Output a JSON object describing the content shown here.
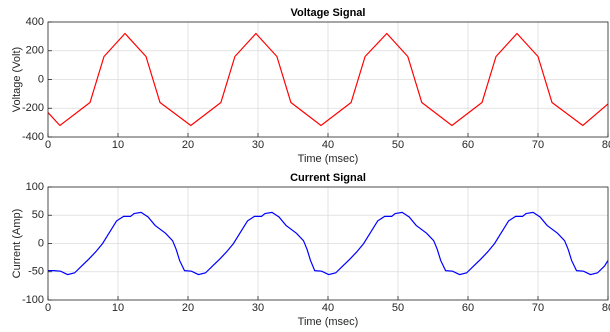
{
  "chart_data": [
    {
      "type": "line",
      "title": "Voltage Signal",
      "x_label": "Time (msec)",
      "y_label": "Voltage (Volt)",
      "color": "#ff0000",
      "grid": true,
      "xlim": [
        0,
        80
      ],
      "xticks": [
        0,
        10,
        20,
        30,
        40,
        50,
        60,
        70,
        80
      ],
      "ylim": [
        -400,
        400
      ],
      "yticks": [
        -400,
        -200,
        0,
        200,
        400
      ],
      "x": [
        0,
        1.7,
        6.0,
        8.0,
        11.0,
        14.0,
        16.0,
        20.4,
        24.7,
        26.7,
        29.7,
        32.7,
        34.7,
        39.0,
        43.3,
        45.3,
        48.4,
        51.4,
        53.4,
        57.7,
        62.0,
        64.0,
        67.0,
        70.0,
        72.0,
        76.4,
        80
      ],
      "values": [
        -230,
        -320,
        -160,
        160,
        320,
        160,
        -160,
        -320,
        -160,
        160,
        320,
        160,
        -160,
        -320,
        -160,
        160,
        320,
        160,
        -160,
        -320,
        -160,
        160,
        320,
        160,
        -160,
        -320,
        -170
      ]
    },
    {
      "type": "line",
      "title": "Current Signal",
      "x_label": "Time (msec)",
      "y_label": "Current (Amp)",
      "color": "#0000ff",
      "grid": true,
      "xlim": [
        0,
        80
      ],
      "xticks": [
        0,
        10,
        20,
        30,
        40,
        50,
        60,
        70,
        80
      ],
      "ylim": [
        -100,
        100
      ],
      "yticks": [
        -100,
        -50,
        0,
        50,
        100
      ],
      "x": [
        0,
        0.8,
        1.8,
        2.8,
        3.8,
        4.8,
        5.8,
        6.8,
        7.8,
        8.8,
        9.8,
        10.8,
        11.8,
        12.3,
        13.3,
        14.3,
        15.3,
        16.8,
        17.8,
        18.3,
        18.8,
        19.5,
        20.5,
        21.5,
        22.5,
        23.5,
        24.5,
        25.5,
        26.5,
        27.5,
        28.5,
        29.5,
        30.5,
        31,
        32,
        33,
        34,
        35.5,
        36.5,
        37,
        37.5,
        38.1,
        39.1,
        40.1,
        41.1,
        42.1,
        43.1,
        44.1,
        45.1,
        46.1,
        47.1,
        48.1,
        49.1,
        49.6,
        50.6,
        51.6,
        52.6,
        54.1,
        55.1,
        55.6,
        56.1,
        56.8,
        57.8,
        58.8,
        59.8,
        60.8,
        61.8,
        62.8,
        63.8,
        64.8,
        65.8,
        66.8,
        67.8,
        68.3,
        69.3,
        70.3,
        71.3,
        72.8,
        73.8,
        74.3,
        74.8,
        75.5,
        76.5,
        77.5,
        78.5,
        79.5,
        80
      ],
      "values": [
        -48,
        -48,
        -49,
        -55,
        -52,
        -40,
        -28,
        -15,
        0,
        20,
        40,
        48,
        48,
        53,
        55,
        47,
        32,
        18,
        5,
        -10,
        -30,
        -48,
        -49,
        -55,
        -52,
        -40,
        -28,
        -15,
        0,
        20,
        40,
        48,
        48,
        53,
        55,
        47,
        32,
        18,
        5,
        -10,
        -30,
        -48,
        -49,
        -55,
        -52,
        -40,
        -28,
        -15,
        0,
        20,
        40,
        48,
        48,
        53,
        55,
        47,
        32,
        18,
        5,
        -10,
        -30,
        -48,
        -49,
        -55,
        -52,
        -40,
        -28,
        -15,
        0,
        20,
        40,
        48,
        48,
        53,
        55,
        47,
        32,
        18,
        5,
        -10,
        -30,
        -48,
        -49,
        -55,
        -52,
        -40,
        -30
      ]
    }
  ]
}
